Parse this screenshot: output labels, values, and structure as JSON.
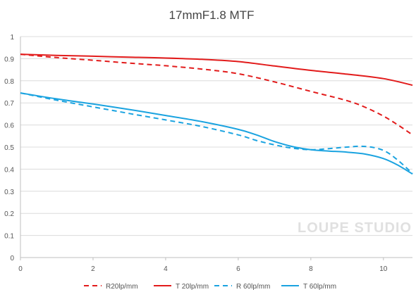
{
  "chart_data": {
    "type": "line",
    "title": "17mmF1.8  MTF",
    "xlabel": "",
    "ylabel": "",
    "xlim": [
      0,
      10.8
    ],
    "ylim": [
      0,
      1
    ],
    "x_ticks": [
      0,
      2,
      4,
      6,
      8,
      10
    ],
    "y_ticks": [
      0,
      0.1,
      0.2,
      0.3,
      0.4,
      0.5,
      0.6,
      0.7,
      0.8,
      0.9,
      1
    ],
    "grid": "horizontal",
    "legend_position": "bottom",
    "watermark": "LOUPE STUDIO",
    "series": [
      {
        "name": "R20lp/mm",
        "color": "#e21b1b",
        "style": "dashed",
        "x": [
          0,
          1,
          2,
          3,
          4,
          5,
          6,
          7,
          8,
          9,
          9.5,
          10,
          10.4,
          10.8
        ],
        "y": [
          0.92,
          0.905,
          0.893,
          0.88,
          0.868,
          0.853,
          0.832,
          0.795,
          0.752,
          0.71,
          0.68,
          0.64,
          0.6,
          0.555
        ]
      },
      {
        "name": "T 20lp/mm",
        "color": "#e21b1b",
        "style": "solid",
        "x": [
          0,
          1,
          2,
          3,
          4,
          5,
          6,
          7,
          8,
          9,
          10,
          10.8
        ],
        "y": [
          0.92,
          0.915,
          0.911,
          0.907,
          0.903,
          0.897,
          0.887,
          0.867,
          0.847,
          0.83,
          0.81,
          0.78
        ]
      },
      {
        "name": "R 60lp/mm",
        "color": "#1aa3e0",
        "style": "dashed",
        "x": [
          0,
          1,
          2,
          3,
          4,
          5,
          6,
          6.5,
          7,
          7.5,
          8,
          8.5,
          9,
          9.5,
          10,
          10.4,
          10.8
        ],
        "y": [
          0.745,
          0.712,
          0.682,
          0.652,
          0.623,
          0.593,
          0.555,
          0.53,
          0.51,
          0.495,
          0.488,
          0.493,
          0.5,
          0.503,
          0.485,
          0.44,
          0.38
        ]
      },
      {
        "name": "T 60lp/mm",
        "color": "#1aa3e0",
        "style": "solid",
        "x": [
          0,
          1,
          2,
          3,
          4,
          5,
          6,
          6.5,
          7,
          7.5,
          8,
          8.5,
          9,
          9.5,
          10,
          10.4,
          10.8
        ],
        "y": [
          0.745,
          0.718,
          0.695,
          0.67,
          0.643,
          0.615,
          0.58,
          0.555,
          0.525,
          0.502,
          0.488,
          0.482,
          0.477,
          0.468,
          0.448,
          0.418,
          0.378
        ]
      }
    ]
  }
}
